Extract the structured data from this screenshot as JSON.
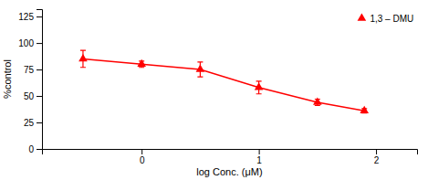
{
  "chart_data": {
    "type": "line",
    "x": [
      -0.5,
      0.0,
      0.5,
      1.0,
      1.5,
      1.9
    ],
    "series": [
      {
        "name": "1,3 – DMU",
        "color": "#FF0000",
        "marker": "triangle",
        "values": [
          85,
          80,
          75,
          58,
          44,
          36
        ],
        "errors": [
          8,
          3,
          7,
          6,
          3,
          2
        ]
      }
    ],
    "xlabel": "log Conc. (μM)",
    "ylabel": "%control",
    "xlim": [
      -0.85,
      2.35
    ],
    "ylim": [
      0,
      132
    ],
    "xticks": [
      0,
      1,
      2
    ],
    "yticks": [
      0,
      25,
      50,
      75,
      100,
      125
    ],
    "legend": "upper-right"
  }
}
